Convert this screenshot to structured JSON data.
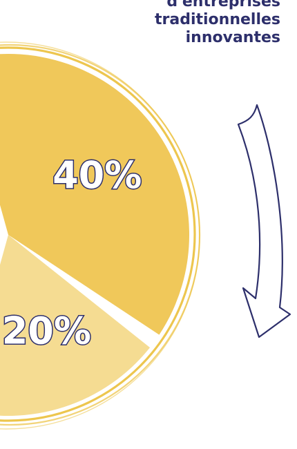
{
  "chart_data": {
    "type": "pie",
    "title_lines": [
      "d'entreprises",
      "traditionnelles",
      "innovantes"
    ],
    "slices": [
      {
        "label": "40%",
        "value": 40,
        "color": "#f0c85a"
      },
      {
        "label": "20%",
        "value": 20,
        "color": "#f5dc92"
      }
    ]
  },
  "colors": {
    "ring": "#e9b822",
    "arrow_stroke": "#2d2f6b",
    "label_text": "#2d2f6b",
    "label_outline": "#ffffff"
  },
  "decoration": {
    "arrow": "curved-down-arrow-icon"
  }
}
